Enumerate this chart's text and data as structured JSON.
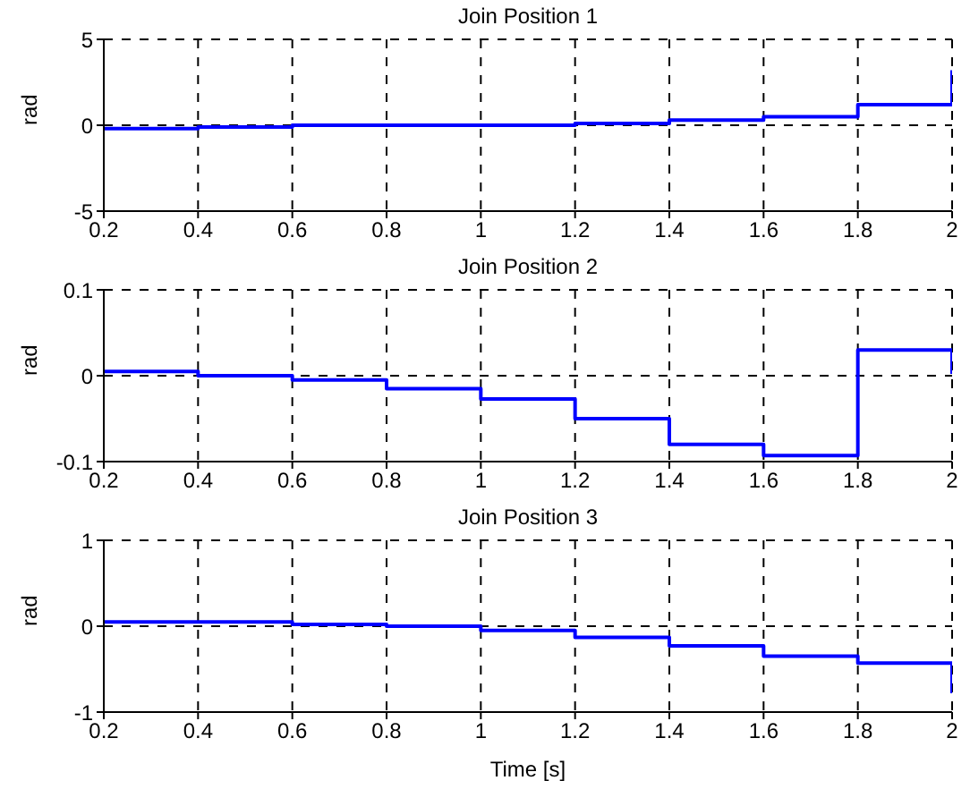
{
  "chart_data": [
    {
      "type": "step",
      "title": "Join Position 1",
      "ylabel": "rad",
      "x": [
        0.2,
        0.4,
        0.6,
        0.8,
        1.0,
        1.2,
        1.4,
        1.6,
        1.8,
        2.0
      ],
      "series": [
        {
          "color": "#0000ff",
          "values": [
            -0.2,
            -0.1,
            0,
            0,
            0,
            0.1,
            0.3,
            0.5,
            1.2,
            3.2
          ]
        }
      ],
      "xlim": [
        0.2,
        2
      ],
      "xticks": [
        0.2,
        0.4,
        0.6,
        0.8,
        1,
        1.2,
        1.4,
        1.6,
        1.8,
        2
      ],
      "ylim": [
        -5,
        5
      ],
      "yticks": [
        -5,
        0,
        5
      ],
      "grid": true
    },
    {
      "type": "step",
      "title": "Join Position 2",
      "ylabel": "rad",
      "x": [
        0.2,
        0.4,
        0.6,
        0.8,
        1.0,
        1.2,
        1.4,
        1.6,
        1.8,
        2.0
      ],
      "series": [
        {
          "color": "#0000ff",
          "values": [
            0.005,
            0,
            -0.005,
            -0.015,
            -0.027,
            -0.05,
            -0.08,
            -0.093,
            0.03,
            0.002
          ]
        }
      ],
      "xlim": [
        0.2,
        2
      ],
      "xticks": [
        0.2,
        0.4,
        0.6,
        0.8,
        1,
        1.2,
        1.4,
        1.6,
        1.8,
        2
      ],
      "ylim": [
        -0.1,
        0.1
      ],
      "yticks": [
        -0.1,
        0,
        0.1
      ],
      "grid": true
    },
    {
      "type": "step",
      "title": "Join Position 3",
      "ylabel": "rad",
      "xlabel": "Time [s]",
      "x": [
        0.2,
        0.4,
        0.6,
        0.8,
        1.0,
        1.2,
        1.4,
        1.6,
        1.8,
        2.0
      ],
      "series": [
        {
          "color": "#0000ff",
          "values": [
            0.05,
            0.05,
            0.02,
            0,
            -0.05,
            -0.13,
            -0.23,
            -0.35,
            -0.43,
            -0.78
          ]
        }
      ],
      "xlim": [
        0.2,
        2
      ],
      "xticks": [
        0.2,
        0.4,
        0.6,
        0.8,
        1,
        1.2,
        1.4,
        1.6,
        1.8,
        2
      ],
      "ylim": [
        -1,
        1
      ],
      "yticks": [
        -1,
        0,
        1
      ],
      "grid": true
    }
  ]
}
